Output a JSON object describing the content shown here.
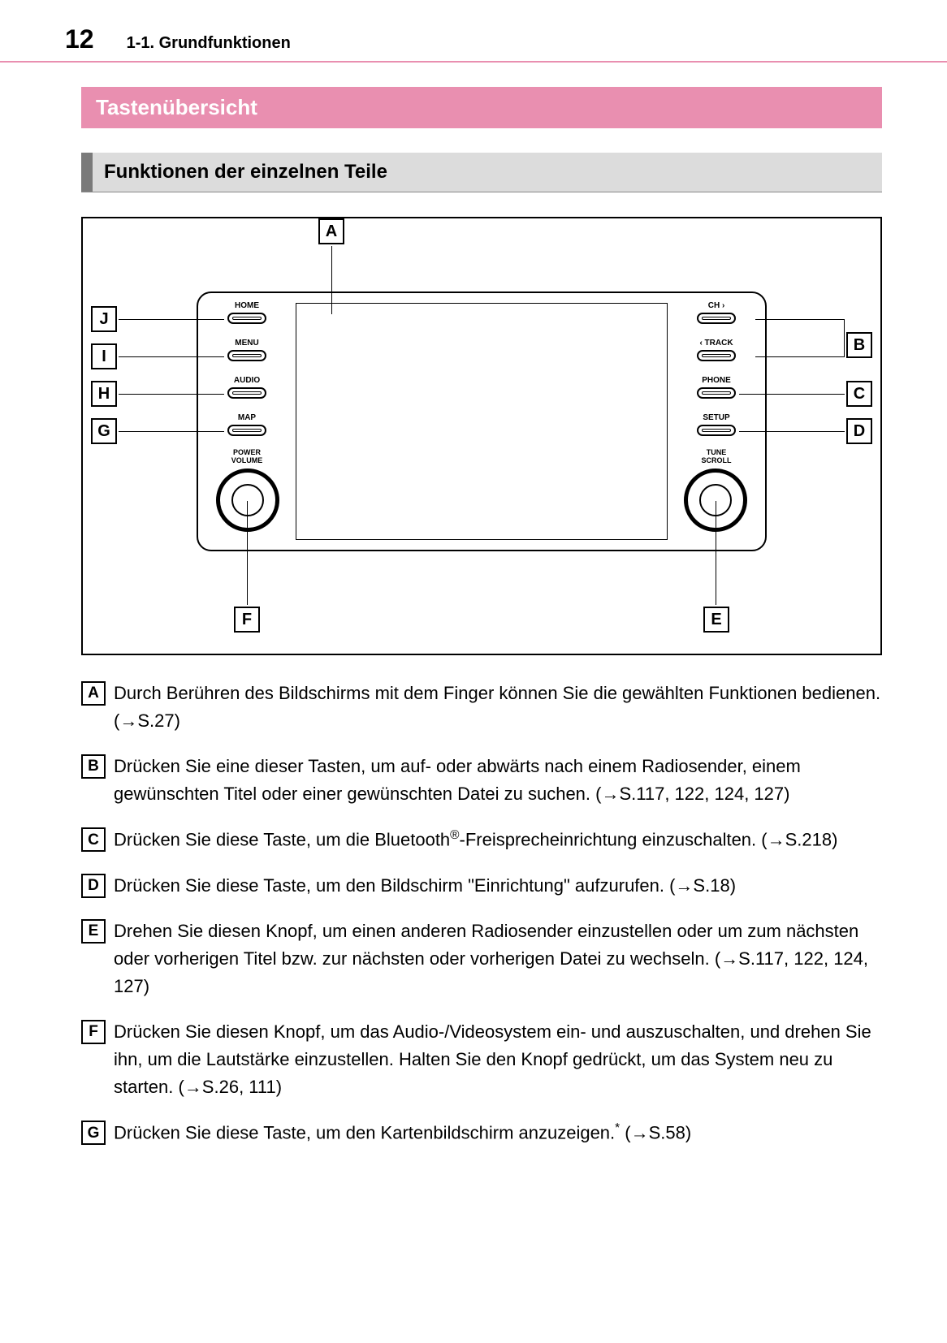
{
  "page_number": "12",
  "section_path": "1-1. Grundfunktionen",
  "title": "Tastenübersicht",
  "subtitle": "Funktionen der einzelnen Teile",
  "diagram": {
    "type": "labeled-device-diagram",
    "callouts": [
      "A",
      "B",
      "C",
      "D",
      "E",
      "F",
      "G",
      "H",
      "I",
      "J"
    ],
    "left_buttons": [
      {
        "key": "J",
        "label": "HOME"
      },
      {
        "key": "I",
        "label": "MENU"
      },
      {
        "key": "H",
        "label": "AUDIO"
      },
      {
        "key": "G",
        "label": "MAP"
      }
    ],
    "right_buttons": [
      {
        "key": "B",
        "label": "CH ›",
        "secondary": "‹ TRACK"
      },
      {
        "key": "C",
        "label": "PHONE"
      },
      {
        "key": "D",
        "label": "SETUP"
      }
    ],
    "left_knob": {
      "key": "F",
      "label": "POWER\nVOLUME"
    },
    "right_knob": {
      "key": "E",
      "label": "TUNE\nSCROLL"
    },
    "top_callout": "A",
    "colors": {
      "outline": "#000000",
      "background": "#ffffff"
    }
  },
  "descriptions": [
    {
      "k": "A",
      "text_pre": "Durch Berühren des Bildschirms mit dem Finger können Sie die gewählten Funktionen bedienen. (",
      "ref": "→S.27",
      "text_post": ")"
    },
    {
      "k": "B",
      "text_pre": "Drücken Sie eine dieser Tasten, um auf- oder abwärts nach einem Radiosender, einem gewünschten Titel oder einer gewünschten Datei zu suchen. (",
      "ref": "→S.117, 122, 124, 127",
      "text_post": ")"
    },
    {
      "k": "C",
      "text_pre": "Drücken Sie diese Taste, um die Bluetooth",
      "sup": "®",
      "text_mid": "-Freisprecheinrichtung einzuschalten. (",
      "ref": "→S.218",
      "text_post": ")"
    },
    {
      "k": "D",
      "text_pre": "Drücken Sie diese Taste, um den Bildschirm \"Einrichtung\" aufzurufen. (",
      "ref": "→S.18",
      "text_post": ")"
    },
    {
      "k": "E",
      "text_pre": "Drehen Sie diesen Knopf, um einen anderen Radiosender einzustellen oder um zum nächsten oder vorherigen Titel bzw. zur nächsten oder vorherigen Datei zu wechseln. (",
      "ref": "→S.117, 122, 124, 127",
      "text_post": ")"
    },
    {
      "k": "F",
      "text_pre": "Drücken Sie diesen Knopf, um das Audio-/Videosystem ein- und auszuschalten, und drehen Sie ihn, um die Lautstärke einzustellen. Halten Sie den Knopf gedrückt, um das System neu zu starten. (",
      "ref": "→S.26, 111",
      "text_post": ")"
    },
    {
      "k": "G",
      "text_pre": "Drücken Sie diese Taste, um den Kartenbildschirm anzuzeigen.",
      "sup": "*",
      "text_mid": " (",
      "ref": "→S.58",
      "text_post": ")"
    }
  ]
}
